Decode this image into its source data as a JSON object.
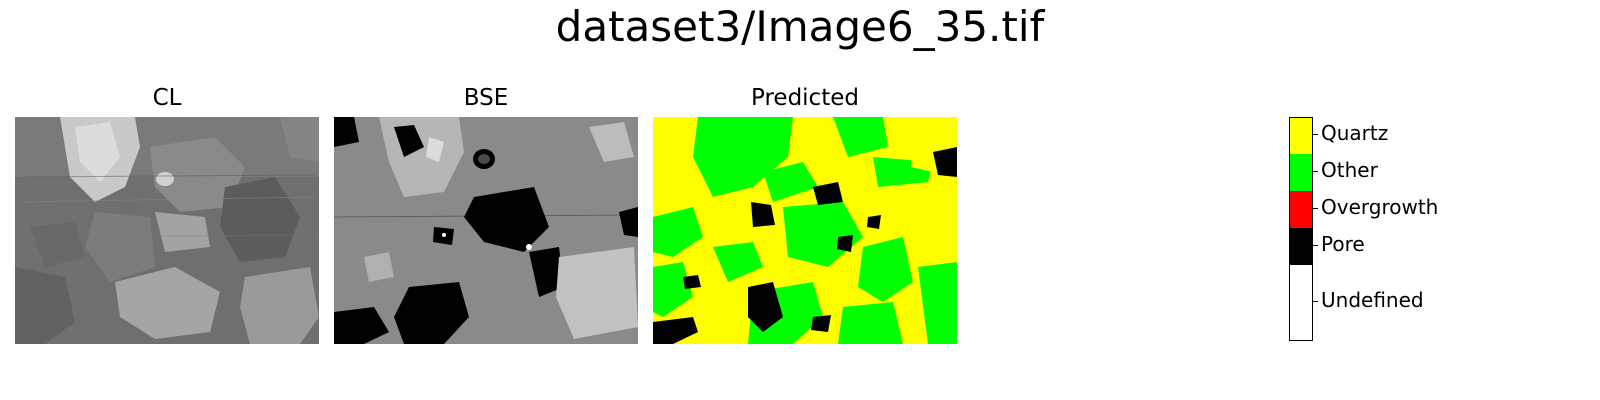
{
  "figure": {
    "title": "dataset3/Image6_35.tif"
  },
  "panels": [
    {
      "id": "cl",
      "title": "CL"
    },
    {
      "id": "bse",
      "title": "BSE"
    },
    {
      "id": "predicted",
      "title": "Predicted"
    }
  ],
  "legend": {
    "classes": [
      {
        "label": "Quartz",
        "color": "#ffff00"
      },
      {
        "label": "Other",
        "color": "#00ff00"
      },
      {
        "label": "Overgrowth",
        "color": "#ff0000"
      },
      {
        "label": "Pore",
        "color": "#000000"
      },
      {
        "label": "Undefined",
        "color": "#ffffff"
      }
    ]
  }
}
